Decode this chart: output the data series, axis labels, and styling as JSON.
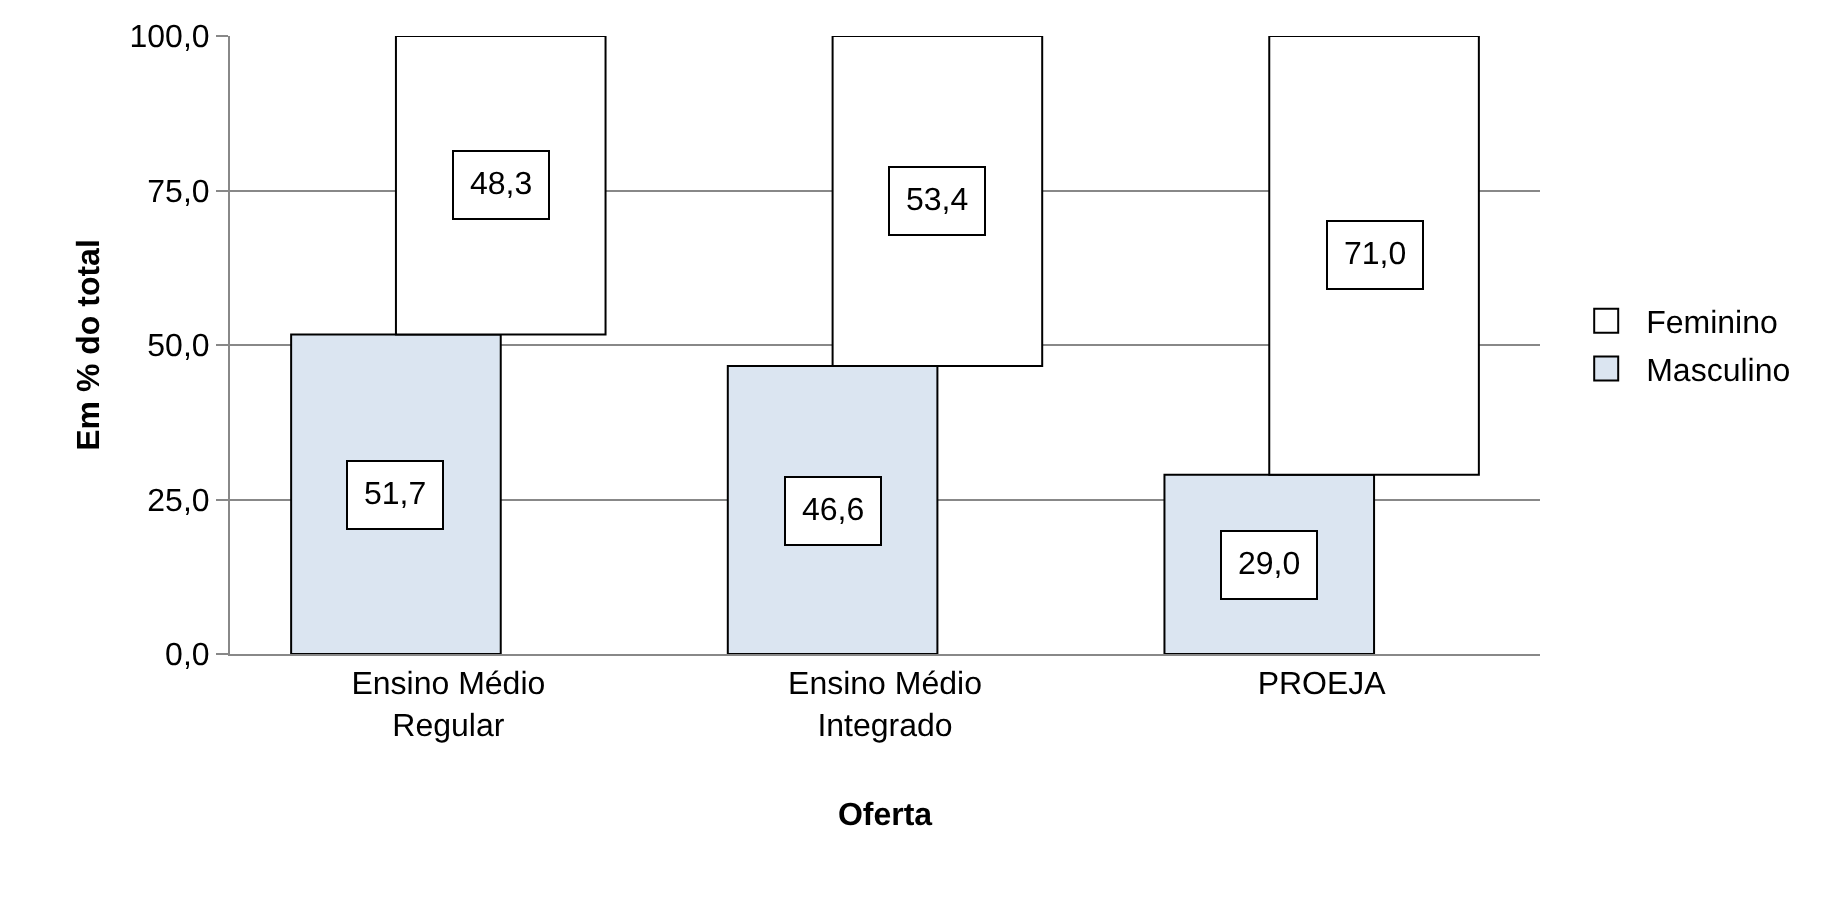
{
  "chart_data": {
    "type": "bar",
    "xlabel": "Oferta",
    "ylabel": "Em % do total",
    "categories": [
      "Ensino Médio Regular",
      "Ensino Médio Integrado",
      "PROEJA"
    ],
    "series": [
      {
        "name": "Masculino",
        "color": "#dbe5f1",
        "values": [
          51.7,
          46.6,
          29.0
        ],
        "value_labels": [
          "51,7",
          "46,6",
          "29,0"
        ]
      },
      {
        "name": "Feminino",
        "color": "#ffffff",
        "values": [
          48.3,
          53.4,
          71.0
        ],
        "base": [
          51.7,
          46.6,
          29.0
        ],
        "value_labels": [
          "48,3",
          "53,4",
          "71,0"
        ]
      }
    ],
    "ylim": [
      0,
      100
    ],
    "yticks": [
      {
        "value": 0,
        "label": "0,0"
      },
      {
        "value": 25,
        "label": "25,0"
      },
      {
        "value": 50,
        "label": "50,0"
      },
      {
        "value": 75,
        "label": "75,0"
      },
      {
        "value": 100,
        "label": "100,0"
      }
    ],
    "grid": "y",
    "legend": "right"
  }
}
